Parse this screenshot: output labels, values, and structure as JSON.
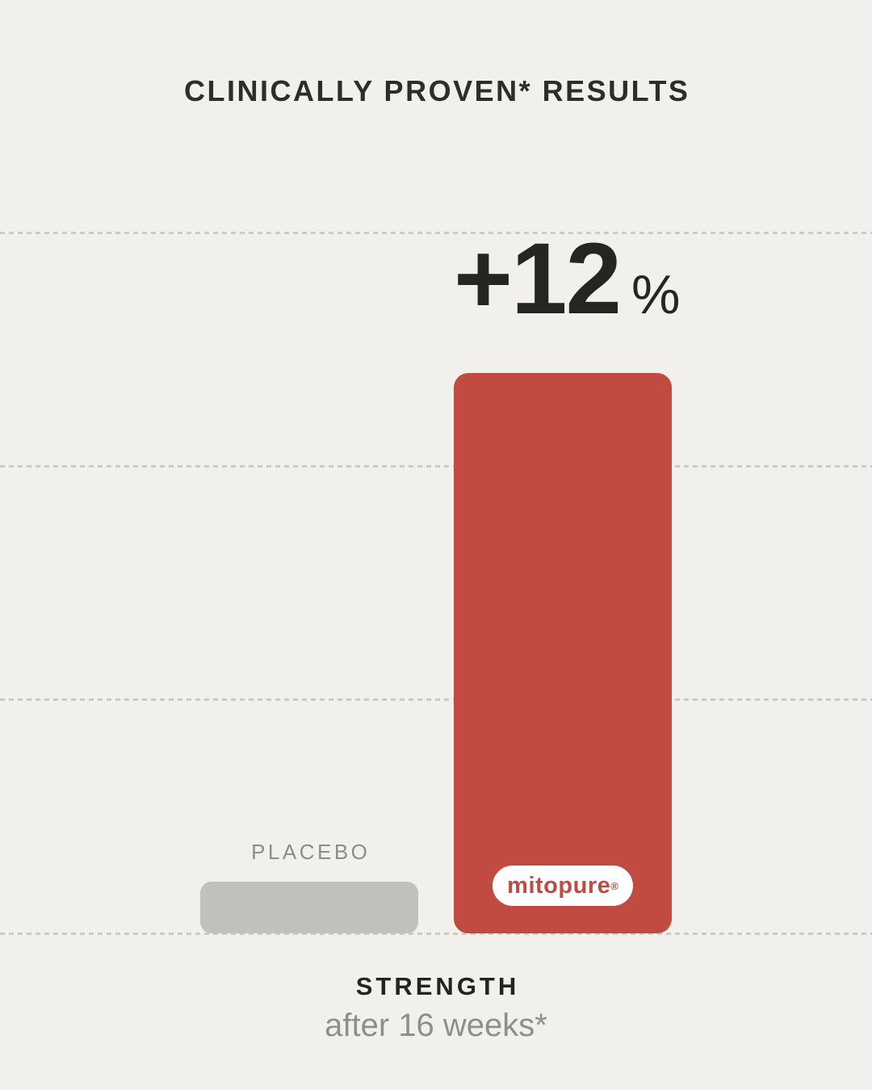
{
  "title": "CLINICALLY PROVEN* RESULTS",
  "annotation": {
    "value": "+12",
    "unit": "%"
  },
  "bars": {
    "placebo_label": "PLACEBO",
    "logo_text": "mitopure",
    "registered_mark": "®"
  },
  "footer": {
    "category": "STRENGTH",
    "subcategory": "after 16 weeks*"
  },
  "colors": {
    "background": "#F1F0ED",
    "ink": "#262621",
    "muted_text": "#8F8F8A",
    "mitopure_red": "#C14A41",
    "placebo_gray": "#C1C0BA",
    "gridline": "#CBCAC4",
    "pill_background": "#FFFFFF"
  },
  "chart_data": {
    "type": "bar",
    "categories": [
      "PLACEBO",
      "MITOPURE"
    ],
    "series": [
      {
        "name": "Strength improvement after 16 weeks (%)",
        "values": [
          1.1,
          12
        ]
      }
    ],
    "title": "CLINICALLY PROVEN* RESULTS",
    "xlabel": "STRENGTH",
    "ylabel": "",
    "ylim": [
      0,
      15
    ],
    "gridline_values": [
      5,
      10,
      15
    ],
    "gridline_style": "dashed",
    "grid": true,
    "legend": "none",
    "annotations": [
      {
        "target": "MITOPURE",
        "text": "+12%"
      },
      {
        "target": "MITOPURE",
        "text": "mitopure®",
        "kind": "logo-pill"
      }
    ],
    "bar_colors": {
      "PLACEBO": "#C1C0BA",
      "MITOPURE": "#C14A41"
    }
  }
}
